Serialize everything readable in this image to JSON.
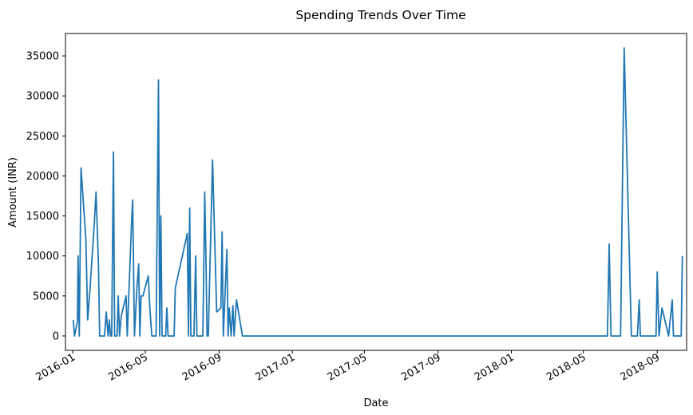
{
  "chart_data": {
    "type": "line",
    "title": "Spending Trends Over Time",
    "xlabel": "Date",
    "ylabel": "Amount (INR)",
    "x_ticks": [
      "2016-01",
      "2016-05",
      "2016-09",
      "2017-01",
      "2017-05",
      "2017-09",
      "2018-01",
      "2018-05",
      "2018-09"
    ],
    "y_ticks": [
      0,
      5000,
      10000,
      15000,
      20000,
      25000,
      30000,
      35000
    ],
    "xlim": [
      "2015-12-20",
      "2018-10-20"
    ],
    "ylim": [
      -1800,
      37800
    ],
    "grid": false,
    "legend": false,
    "line_color": "#1f77b4",
    "series": [
      {
        "points": [
          [
            "2016-01-02",
            2000
          ],
          [
            "2016-01-04",
            0
          ],
          [
            "2016-01-09",
            1800
          ],
          [
            "2016-01-10",
            10000
          ],
          [
            "2016-01-12",
            0
          ],
          [
            "2016-01-15",
            21000
          ],
          [
            "2016-01-23",
            12000
          ],
          [
            "2016-01-26",
            2000
          ],
          [
            "2016-01-30",
            6000
          ],
          [
            "2016-02-06",
            14000
          ],
          [
            "2016-02-09",
            18000
          ],
          [
            "2016-02-13",
            9000
          ],
          [
            "2016-02-15",
            0
          ],
          [
            "2016-02-23",
            0
          ],
          [
            "2016-02-26",
            3000
          ],
          [
            "2016-02-29",
            0
          ],
          [
            "2016-03-02",
            2000
          ],
          [
            "2016-03-04",
            0
          ],
          [
            "2016-03-06",
            0
          ],
          [
            "2016-03-09",
            23000
          ],
          [
            "2016-03-11",
            0
          ],
          [
            "2016-03-15",
            0
          ],
          [
            "2016-03-17",
            5000
          ],
          [
            "2016-03-19",
            0
          ],
          [
            "2016-03-22",
            2500
          ],
          [
            "2016-03-30",
            5000
          ],
          [
            "2016-04-01",
            0
          ],
          [
            "2016-04-08",
            14000
          ],
          [
            "2016-04-10",
            17000
          ],
          [
            "2016-04-13",
            0
          ],
          [
            "2016-04-17",
            6000
          ],
          [
            "2016-04-20",
            9000
          ],
          [
            "2016-04-22",
            0
          ],
          [
            "2016-04-24",
            5000
          ],
          [
            "2016-04-27",
            5000
          ],
          [
            "2016-05-06",
            7500
          ],
          [
            "2016-05-09",
            3000
          ],
          [
            "2016-05-12",
            0
          ],
          [
            "2016-05-19",
            0
          ],
          [
            "2016-05-23",
            32000
          ],
          [
            "2016-05-25",
            0
          ],
          [
            "2016-05-27",
            15000
          ],
          [
            "2016-05-29",
            0
          ],
          [
            "2016-06-04",
            0
          ],
          [
            "2016-06-06",
            3500
          ],
          [
            "2016-06-08",
            0
          ],
          [
            "2016-06-18",
            0
          ],
          [
            "2016-06-20",
            6000
          ],
          [
            "2016-07-10",
            12800
          ],
          [
            "2016-07-12",
            0
          ],
          [
            "2016-07-14",
            16000
          ],
          [
            "2016-07-16",
            0
          ],
          [
            "2016-07-21",
            0
          ],
          [
            "2016-07-24",
            10000
          ],
          [
            "2016-07-26",
            0
          ],
          [
            "2016-08-05",
            0
          ],
          [
            "2016-08-08",
            18000
          ],
          [
            "2016-08-10",
            10000
          ],
          [
            "2016-08-12",
            0
          ],
          [
            "2016-08-14",
            0
          ],
          [
            "2016-08-21",
            22000
          ],
          [
            "2016-08-28",
            3000
          ],
          [
            "2016-09-04",
            3500
          ],
          [
            "2016-09-06",
            13000
          ],
          [
            "2016-09-08",
            0
          ],
          [
            "2016-09-14",
            10800
          ],
          [
            "2016-09-16",
            0
          ],
          [
            "2016-09-18",
            3500
          ],
          [
            "2016-09-21",
            0
          ],
          [
            "2016-09-24",
            3800
          ],
          [
            "2016-09-26",
            0
          ],
          [
            "2016-09-30",
            4500
          ],
          [
            "2016-10-10",
            0
          ],
          [
            "2018-06-10",
            0
          ],
          [
            "2018-06-13",
            11500
          ],
          [
            "2018-06-16",
            0
          ],
          [
            "2018-07-02",
            0
          ],
          [
            "2018-07-08",
            36000
          ],
          [
            "2018-07-20",
            0
          ],
          [
            "2018-07-30",
            0
          ],
          [
            "2018-08-02",
            4500
          ],
          [
            "2018-08-04",
            0
          ],
          [
            "2018-08-30",
            0
          ],
          [
            "2018-09-01",
            8000
          ],
          [
            "2018-09-04",
            0
          ],
          [
            "2018-09-09",
            3500
          ],
          [
            "2018-09-20",
            0
          ],
          [
            "2018-09-26",
            4500
          ],
          [
            "2018-09-28",
            0
          ],
          [
            "2018-10-11",
            0
          ],
          [
            "2018-10-13",
            10000
          ]
        ]
      }
    ]
  }
}
